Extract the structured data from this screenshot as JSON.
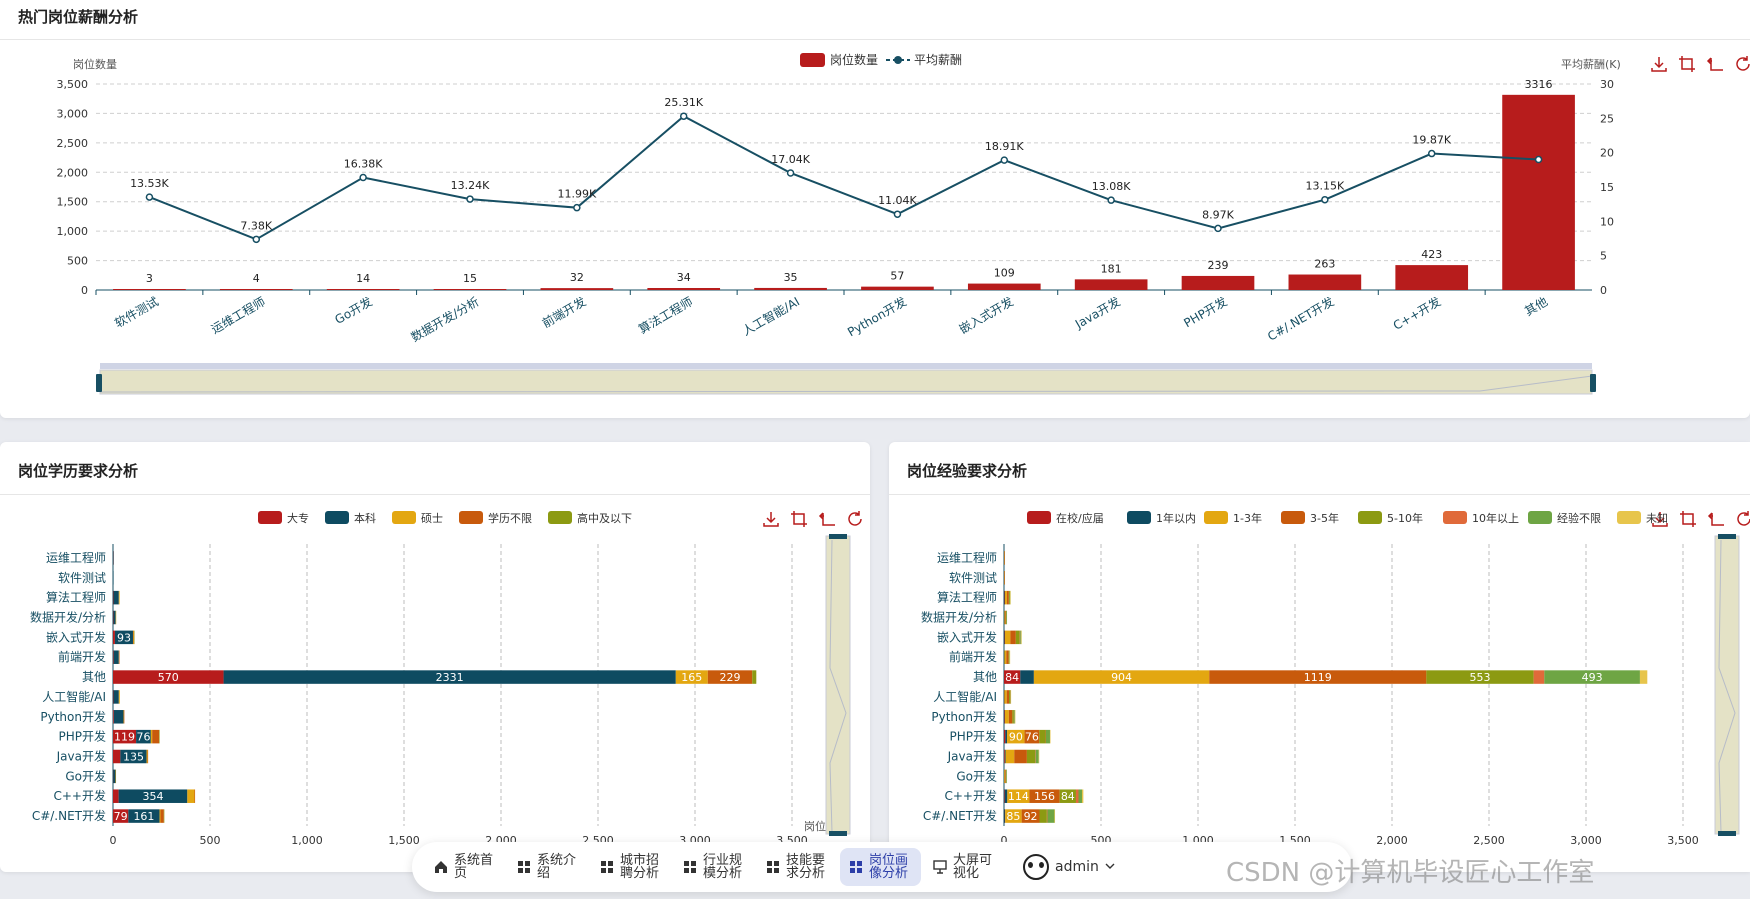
{
  "top": {
    "title": "热门岗位薪酬分析",
    "legend": {
      "bar": "岗位数量",
      "line": "平均薪酬"
    },
    "y_left_label": "岗位数量",
    "y_right_label": "平均薪酬(K)"
  },
  "edu": {
    "title": "岗位学历要求分析",
    "legend": [
      "大专",
      "本科",
      "硕士",
      "学历不限",
      "高中及以下"
    ],
    "x_axis_label": "岗位数量"
  },
  "exp": {
    "title": "岗位经验要求分析",
    "legend": [
      "在校/应届",
      "1年以内",
      "1-3年",
      "3-5年",
      "5-10年",
      "10年以上",
      "经验不限",
      "未知"
    ]
  },
  "colors": {
    "red": "#b71c1c",
    "teal": "#0e4b61",
    "gold": "#e3a711",
    "orange": "#c85a0c",
    "olive": "#8c9a12",
    "coral": "#e06a3a",
    "green": "#6ea544",
    "yellow": "#e7c54c",
    "line": "#174f63"
  },
  "nav": [
    {
      "label": "系统首页",
      "icon": "home-icon"
    },
    {
      "label": "系统介绍",
      "icon": "grid-icon"
    },
    {
      "label": "城市招聘分析",
      "icon": "grid-icon"
    },
    {
      "label": "行业规模分析",
      "icon": "grid-icon"
    },
    {
      "label": "技能要求分析",
      "icon": "grid-icon"
    },
    {
      "label": "岗位画像分析",
      "icon": "grid-icon",
      "active": true
    },
    {
      "label": "大屏可视化",
      "icon": "monitor-icon"
    }
  ],
  "user": {
    "name": "admin"
  },
  "watermark": "CSDN @计算机毕设匠心工作室",
  "chart_data": [
    {
      "type": "bar",
      "title": "热门岗位薪酬分析",
      "categories": [
        "软件测试",
        "运维工程师",
        "Go开发",
        "数据开发/分析",
        "前端开发",
        "算法工程师",
        "人工智能/AI",
        "Python开发",
        "嵌入式开发",
        "Java开发",
        "PHP开发",
        "C#/.NET开发",
        "C++开发",
        "其他"
      ],
      "series": [
        {
          "name": "岗位数量",
          "type": "bar",
          "axis": "left",
          "values": [
            3,
            4,
            14,
            15,
            32,
            34,
            35,
            57,
            109,
            181,
            239,
            263,
            423,
            3316
          ],
          "labels": [
            "3",
            "4",
            "14",
            "15",
            "32",
            "34",
            "35",
            "57",
            "109",
            "181",
            "239",
            "263",
            "423",
            "3316"
          ]
        },
        {
          "name": "平均薪酬",
          "type": "line",
          "axis": "right",
          "values": [
            13.53,
            7.38,
            16.38,
            13.24,
            11.99,
            25.31,
            17.04,
            11.04,
            18.91,
            13.08,
            8.97,
            13.15,
            19.87,
            19.0
          ],
          "labels": [
            "13.53K",
            "7.38K",
            "16.38K",
            "13.24K",
            "11.99K",
            "25.31K",
            "17.04K",
            "11.04K",
            "18.91K",
            "13.08K",
            "8.97K",
            "13.15K",
            "19.87K",
            ""
          ]
        }
      ],
      "ylabel": "岗位数量",
      "ylabel_right": "平均薪酬(K)",
      "ylim": [
        0,
        3500
      ],
      "yticks": [
        "0",
        "500",
        "1,000",
        "1,500",
        "2,000",
        "2,500",
        "3,000",
        "3,500"
      ],
      "ylim_right": [
        0,
        30
      ],
      "yticks_right": [
        "0",
        "5",
        "10",
        "15",
        "20",
        "25",
        "30"
      ],
      "grid": true,
      "legend": "top-center"
    },
    {
      "type": "bar",
      "orientation": "horizontal",
      "stacked": true,
      "title": "岗位学历要求分析",
      "categories": [
        "运维工程师",
        "软件测试",
        "算法工程师",
        "数据开发/分析",
        "嵌入式开发",
        "前端开发",
        "其他",
        "人工智能/AI",
        "Python开发",
        "PHP开发",
        "Java开发",
        "Go开发",
        "C++开发",
        "C#/.NET开发"
      ],
      "series": [
        {
          "name": "大专",
          "values": [
            1,
            0,
            2,
            2,
            10,
            3,
            570,
            2,
            4,
            119,
            38,
            1,
            29,
            79
          ]
        },
        {
          "name": "本科",
          "values": [
            3,
            3,
            28,
            12,
            93,
            27,
            2331,
            28,
            50,
            76,
            135,
            12,
            354,
            161
          ]
        },
        {
          "name": "硕士",
          "values": [
            0,
            0,
            4,
            1,
            3,
            1,
            165,
            5,
            2,
            7,
            5,
            1,
            37,
            5
          ]
        },
        {
          "name": "学历不限",
          "values": [
            0,
            0,
            0,
            0,
            2,
            1,
            229,
            0,
            1,
            36,
            3,
            0,
            3,
            17
          ]
        },
        {
          "name": "高中及以下",
          "values": [
            0,
            0,
            0,
            0,
            1,
            0,
            21,
            0,
            0,
            1,
            0,
            0,
            0,
            1
          ]
        }
      ],
      "xlabel": "岗位数量",
      "xlim": [
        0,
        3500
      ],
      "xticks": [
        "0",
        "500",
        "1,000",
        "1,500",
        "2,000",
        "2,500",
        "3,000",
        "3,500"
      ],
      "grid": true,
      "legend": "top-center"
    },
    {
      "type": "bar",
      "orientation": "horizontal",
      "stacked": true,
      "title": "岗位经验要求分析",
      "categories": [
        "运维工程师",
        "软件测试",
        "算法工程师",
        "数据开发/分析",
        "嵌入式开发",
        "前端开发",
        "其他",
        "人工智能/AI",
        "Python开发",
        "PHP开发",
        "Java开发",
        "Go开发",
        "C++开发",
        "C#/.NET开发"
      ],
      "series": [
        {
          "name": "在校/应届",
          "values": [
            0,
            0,
            2,
            0,
            2,
            0,
            84,
            1,
            3,
            7,
            4,
            0,
            3,
            1
          ]
        },
        {
          "name": "1年以内",
          "values": [
            1,
            1,
            3,
            2,
            3,
            2,
            70,
            1,
            2,
            9,
            4,
            1,
            14,
            5
          ]
        },
        {
          "name": "1-3年",
          "values": [
            1,
            1,
            10,
            5,
            28,
            10,
            904,
            12,
            20,
            90,
            45,
            5,
            114,
            85
          ]
        },
        {
          "name": "3-5年",
          "values": [
            1,
            1,
            10,
            4,
            28,
            12,
            1119,
            12,
            18,
            76,
            65,
            4,
            156,
            92
          ]
        },
        {
          "name": "5-10年",
          "values": [
            0,
            0,
            5,
            2,
            20,
            3,
            553,
            5,
            8,
            32,
            42,
            2,
            84,
            38
          ]
        },
        {
          "name": "10年以上",
          "values": [
            0,
            0,
            0,
            0,
            3,
            0,
            55,
            1,
            1,
            2,
            3,
            0,
            13,
            3
          ]
        },
        {
          "name": "经验不限",
          "values": [
            0,
            0,
            2,
            1,
            5,
            2,
            493,
            2,
            4,
            21,
            16,
            1,
            18,
            36
          ]
        },
        {
          "name": "未知",
          "values": [
            0,
            0,
            1,
            0,
            2,
            1,
            38,
            1,
            1,
            2,
            2,
            0,
            7,
            3
          ]
        }
      ],
      "xlim": [
        0,
        3500
      ],
      "xticks": [
        "0",
        "500",
        "1,000",
        "1,500",
        "2,000",
        "2,500",
        "3,000",
        "3,500"
      ],
      "grid": true,
      "legend": "top-center"
    }
  ]
}
